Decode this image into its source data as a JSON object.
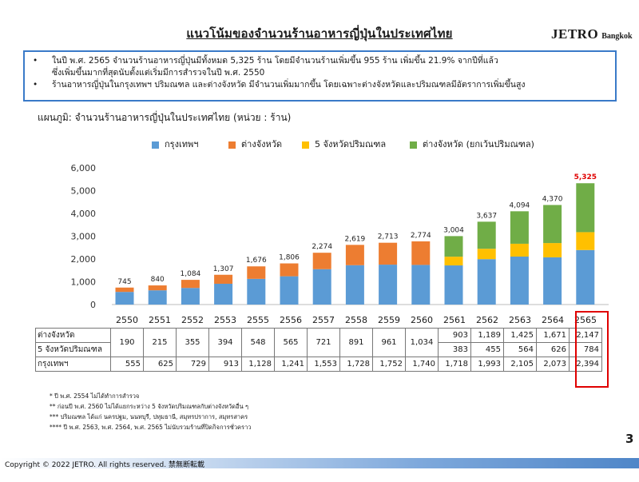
{
  "page": {
    "title": "แนวโน้มของจำนวนร้านอาหารญี่ปุ่นในประเทศไทย",
    "logo_main": "JETRO",
    "logo_sub": "Bangkok",
    "bullet": "•",
    "summary": [
      "ในปี พ.ศ. 2565 จำนวนร้านอาหารญี่ปุ่นมีทั้งหมด 5,325 ร้าน  โดยมีจำนวนร้านเพิ่มขึ้น 955 ร้าน เพิ่มขึ้น 21.9% จากปีที่แล้ว",
      "ซึ่งเพิ่มขึ้นมากที่สุดนับตั้งแต่เริ่มมีการสำรวจในปี พ.ศ. 2550",
      "ร้านอาหารญี่ปุ่นในกรุงเทพฯ ปริมณฑล และต่างจังหวัด มีจำนวนเพิ่มมากขึ้น โดยเฉพาะต่างจังหวัดและปริมณฑลมีอัตราการเพิ่มขึ้นสูง"
    ],
    "chart_subtitle": "แผนภูมิ: จำนวนร้านอาหารญี่ปุ่นในประเทศไทย (หน่วย : ร้าน)",
    "notes": [
      "* ปี พ.ศ. 2554 ไม่ได้ทำการสำรวจ",
      "** ก่อนปี พ.ศ. 2560 ไม่ได้แยกระหว่าง 5 จังหวัดปริมณฑลกับต่างจังหวัดอื่น ๆ",
      "*** ปริมณฑล ได้แก่ นครปฐม, นนทบุรี, ปทุมธานี, สมุทรปราการ, สมุทรสาคร",
      "**** ปี พ.ศ. 2563, พ.ศ. 2564, พ.ศ. 2565 ไม่นับรวมร้านที่ปิดกิจการชั่วคราว"
    ],
    "page_number": "3",
    "copyright": "Copyright © 2022 JETRO. All rights reserved. 禁無断転載"
  },
  "chart_data": {
    "type": "bar",
    "stacked": true,
    "categories": [
      "2550",
      "2551",
      "2552",
      "2553",
      "2555",
      "2556",
      "2557",
      "2558",
      "2559",
      "2560",
      "2561",
      "2562",
      "2563",
      "2564",
      "2565"
    ],
    "series": [
      {
        "name": "กรุงเทพฯ",
        "color": "#5b9bd5",
        "values": [
          555,
          625,
          729,
          913,
          1128,
          1241,
          1553,
          1728,
          1752,
          1740,
          1718,
          1993,
          2105,
          2073,
          2394
        ]
      },
      {
        "name": "ต่างจังหวัด",
        "color": "#ed7d31",
        "values": [
          190,
          215,
          355,
          394,
          548,
          565,
          721,
          891,
          961,
          1034,
          null,
          null,
          null,
          null,
          null
        ]
      },
      {
        "name": "5 จังหวัดปริมณฑล",
        "color": "#ffc000",
        "values": [
          null,
          null,
          null,
          null,
          null,
          null,
          null,
          null,
          null,
          null,
          383,
          455,
          564,
          626,
          784
        ]
      },
      {
        "name": "ต่างจังหวัด (ยกเว้นปริมณฑล)",
        "color": "#70ad47",
        "values": [
          null,
          null,
          null,
          null,
          null,
          null,
          null,
          null,
          null,
          null,
          903,
          1189,
          1425,
          1671,
          2147
        ]
      }
    ],
    "totals": [
      "745",
      "840",
      "1,084",
      "1,307",
      "1,676",
      "1,806",
      "2,274",
      "2,619",
      "2,713",
      "2,774",
      "3,004",
      "3,637",
      "4,094",
      "4,370",
      "5,325"
    ],
    "highlight_total_color": "#e00000",
    "ylim": [
      0,
      6000
    ],
    "yticks": [
      "0",
      "1,000",
      "2,000",
      "3,000",
      "4,000",
      "5,000",
      "6,000"
    ],
    "grid": false,
    "legend_position": "top",
    "table": {
      "row_labels": [
        "ต่างจังหวัด",
        "5 จังหวัดปริมณฑล",
        "กรุงเทพฯ"
      ],
      "merged_provinces": [
        "190",
        "215",
        "355",
        "394",
        "548",
        "565",
        "721",
        "891",
        "961",
        "1,034"
      ],
      "provinces_excl": [
        "903",
        "1,189",
        "1,425",
        "1,671",
        "2,147"
      ],
      "perimeter": [
        "383",
        "455",
        "564",
        "626",
        "784"
      ],
      "bangkok": [
        "555",
        "625",
        "729",
        "913",
        "1,128",
        "1,241",
        "1,553",
        "1,728",
        "1,752",
        "1,740",
        "1,718",
        "1,993",
        "2,105",
        "2,073",
        "2,394"
      ]
    }
  }
}
